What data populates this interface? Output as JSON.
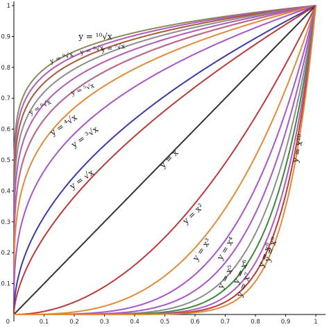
{
  "chart_data": {
    "type": "line",
    "title": "",
    "xlabel": "",
    "ylabel": "",
    "xlim": [
      0,
      1
    ],
    "ylim": [
      0,
      1
    ],
    "grid": false,
    "legend": "none",
    "x_ticks": [
      "0.1",
      "0.2",
      "0.3",
      "0.4",
      "0.5",
      "0.6",
      "0.7",
      "0.8",
      "0.9",
      "1"
    ],
    "y_ticks": [
      "0.1",
      "0.2",
      "0.3",
      "0.4",
      "0.5",
      "0.6",
      "0.7",
      "0.8",
      "0.9",
      "1"
    ],
    "origin_label": "0",
    "series": [
      {
        "name": "y = ¹⁰√x",
        "exponent": 0.1,
        "color": "#8a8a5c"
      },
      {
        "name": "y = ⁹√x",
        "exponent": 0.1111,
        "color": "#b05ab8"
      },
      {
        "name": "y = ⁸√x",
        "exponent": 0.125,
        "color": "#a55a3a"
      },
      {
        "name": "y = ⁷√x",
        "exponent": 0.1429,
        "color": "#8c8c8c"
      },
      {
        "name": "y = ⁶√x",
        "exponent": 0.1667,
        "color": "#b05ab8"
      },
      {
        "name": "y = ⁵√x",
        "exponent": 0.2,
        "color": "#3a3aa8"
      },
      {
        "name": "y = ⁵√x",
        "exponent": 0.2,
        "color": "#c06a88"
      },
      {
        "name": "y = ⁴√x",
        "exponent": 0.25,
        "color": "#e08a3a"
      },
      {
        "name": "y = ³√x",
        "exponent": 0.3333,
        "color": "#a855c8"
      },
      {
        "name": "y = √x",
        "exponent": 0.5,
        "color": "#3a3aa8"
      },
      {
        "name": "",
        "exponent": 0.6,
        "color": "#b83a3a"
      },
      {
        "name": "y = x",
        "exponent": 1,
        "color": "#333333"
      },
      {
        "name": "y = x²",
        "exponent": 2,
        "color": "#b83a3a"
      },
      {
        "name": "y = x³",
        "exponent": 3,
        "color": "#e08a3a"
      },
      {
        "name": "y = x⁴",
        "exponent": 4,
        "color": "#a855c8"
      },
      {
        "name": "y = x⁵",
        "exponent": 5,
        "color": "#a855c8"
      },
      {
        "name": "y = x⁶",
        "exponent": 6,
        "color": "#8c8c8c"
      },
      {
        "name": "y = x⁷",
        "exponent": 7,
        "color": "#3a8a3a"
      },
      {
        "name": "y = x⁸",
        "exponent": 8,
        "color": "#b05ab8"
      },
      {
        "name": "y = x⁹",
        "exponent": 9,
        "color": "#b83a3a"
      },
      {
        "name": "y = x¹⁰",
        "exponent": 10,
        "color": "#e08a3a"
      }
    ],
    "labels": [
      {
        "text": "y = ¹⁰√x",
        "series": 0
      },
      {
        "text": "y = ⁹√x",
        "series": 1
      },
      {
        "text": "y = ⁸√x",
        "series": 2
      },
      {
        "text": "y = ⁷√x",
        "series": 3
      },
      {
        "text": "y = ⁶√x",
        "series": 4
      },
      {
        "text": "y = ⁵√x",
        "series": 6
      },
      {
        "text": "y = ⁴√x",
        "series": 7
      },
      {
        "text": "y = ³√x",
        "series": 8
      },
      {
        "text": "y = √x",
        "series": 9
      },
      {
        "text": "y = x",
        "series": 11
      },
      {
        "text": "y = x²",
        "series": 12
      },
      {
        "text": "y = x³",
        "series": 13
      },
      {
        "text": "y = x⁴",
        "series": 14
      },
      {
        "text": "y = x⁵",
        "series": 15
      },
      {
        "text": "y = x⁶",
        "series": 16
      },
      {
        "text": "y = x⁷",
        "series": 17
      },
      {
        "text": "y = x⁸",
        "series": 18
      },
      {
        "text": "y = x⁹",
        "series": 19
      },
      {
        "text": "y = x¹⁰",
        "series": 20
      }
    ]
  }
}
